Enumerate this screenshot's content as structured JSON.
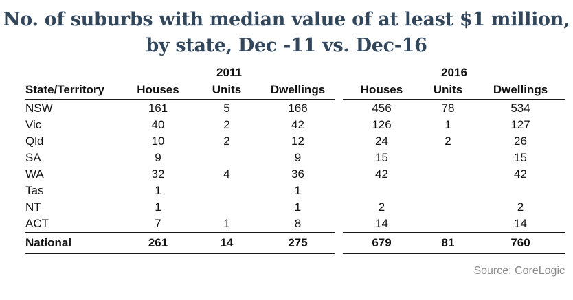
{
  "title": {
    "line1": "No. of suburbs with median value of at least $1 million,",
    "line2": "by state, Dec -11 vs. Dec-16"
  },
  "footer": {
    "source": "Source: CoreLogic"
  },
  "colors": {
    "title_text": "#33475c",
    "table_text": "#111111",
    "rule_lines": "#1a1a1a",
    "source_text": "#8a8a8a"
  },
  "chart_data": {
    "type": "table",
    "title": "No. of suburbs with median value of at least $1 million, by state, Dec -11 vs. Dec-16",
    "source": "Source: CoreLogic",
    "year_groups": [
      "2011",
      "2016"
    ],
    "header": [
      "State/Territory",
      "Houses",
      "Units",
      "Dwellings",
      "Houses",
      "Units",
      "Dwellings"
    ],
    "rows": [
      [
        "NSW",
        "161",
        "5",
        "166",
        "456",
        "78",
        "534"
      ],
      [
        "Vic",
        "40",
        "2",
        "42",
        "126",
        "1",
        "127"
      ],
      [
        "Qld",
        "10",
        "2",
        "12",
        "24",
        "2",
        "26"
      ],
      [
        "SA",
        "9",
        "",
        "9",
        "15",
        "",
        "15"
      ],
      [
        "WA",
        "32",
        "4",
        "36",
        "42",
        "",
        "42"
      ],
      [
        "Tas",
        "1",
        "",
        "1",
        "",
        "",
        ""
      ],
      [
        "NT",
        "1",
        "",
        "1",
        "2",
        "",
        "2"
      ],
      [
        "ACT",
        "7",
        "1",
        "8",
        "14",
        "",
        "14"
      ]
    ],
    "total_row": [
      "National",
      "261",
      "14",
      "275",
      "679",
      "81",
      "760"
    ]
  }
}
